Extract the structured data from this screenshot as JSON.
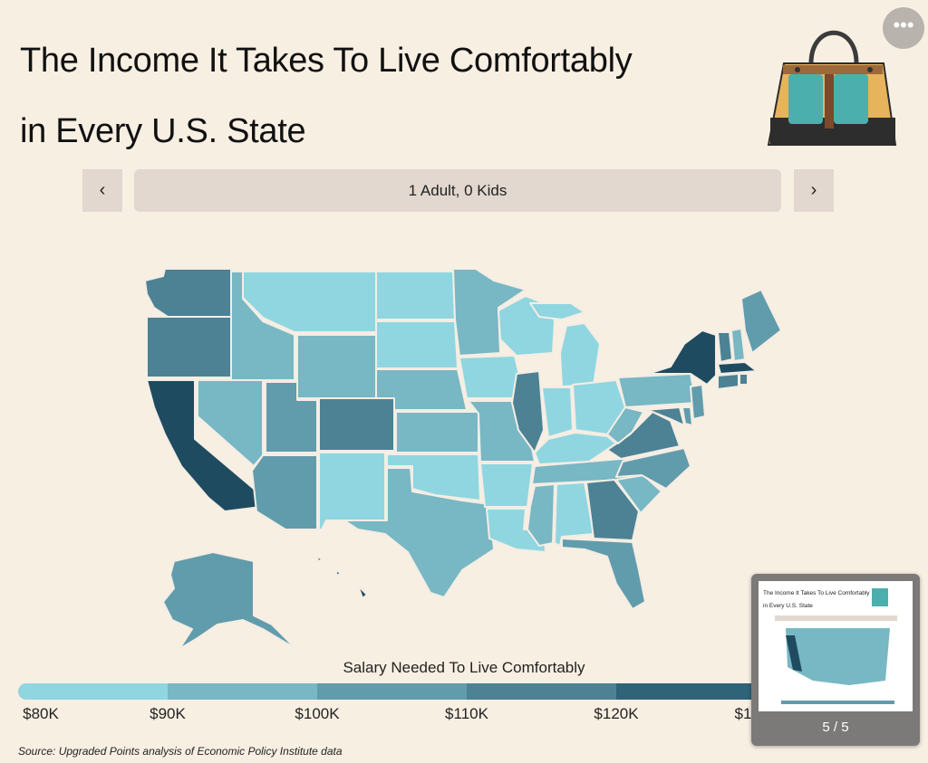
{
  "title": "The Income It Takes To Live Comfortably\nin Every U.S. State",
  "title_line1": "The Income It Takes To Live Comfortably",
  "title_line2": "in Every U.S. State",
  "more_glyph": "•••",
  "nav": {
    "prev": "‹",
    "next": "›",
    "label": "1 Adult, 0 Kids"
  },
  "legend": {
    "title": "Salary Needed To Live Comfortably",
    "ticks": [
      "$80K",
      "$90K",
      "$100K",
      "$110K",
      "$120K",
      "$1"
    ],
    "colors": [
      "#8fd6e0",
      "#78b7c4",
      "#619cac",
      "#4c8294",
      "#2f6378",
      "#1d4a5e"
    ]
  },
  "source": "Source: Upgraded Points analysis of Economic Policy Institute data",
  "thumbnail": {
    "page": "5 / 5"
  },
  "colors": {
    "background": "#f8efe3",
    "button": "#e2d8cf",
    "c80": "#8fd6e0",
    "c90": "#78b7c4",
    "c100": "#619cac",
    "c110": "#4c8294",
    "c120": "#1f4b60"
  }
}
